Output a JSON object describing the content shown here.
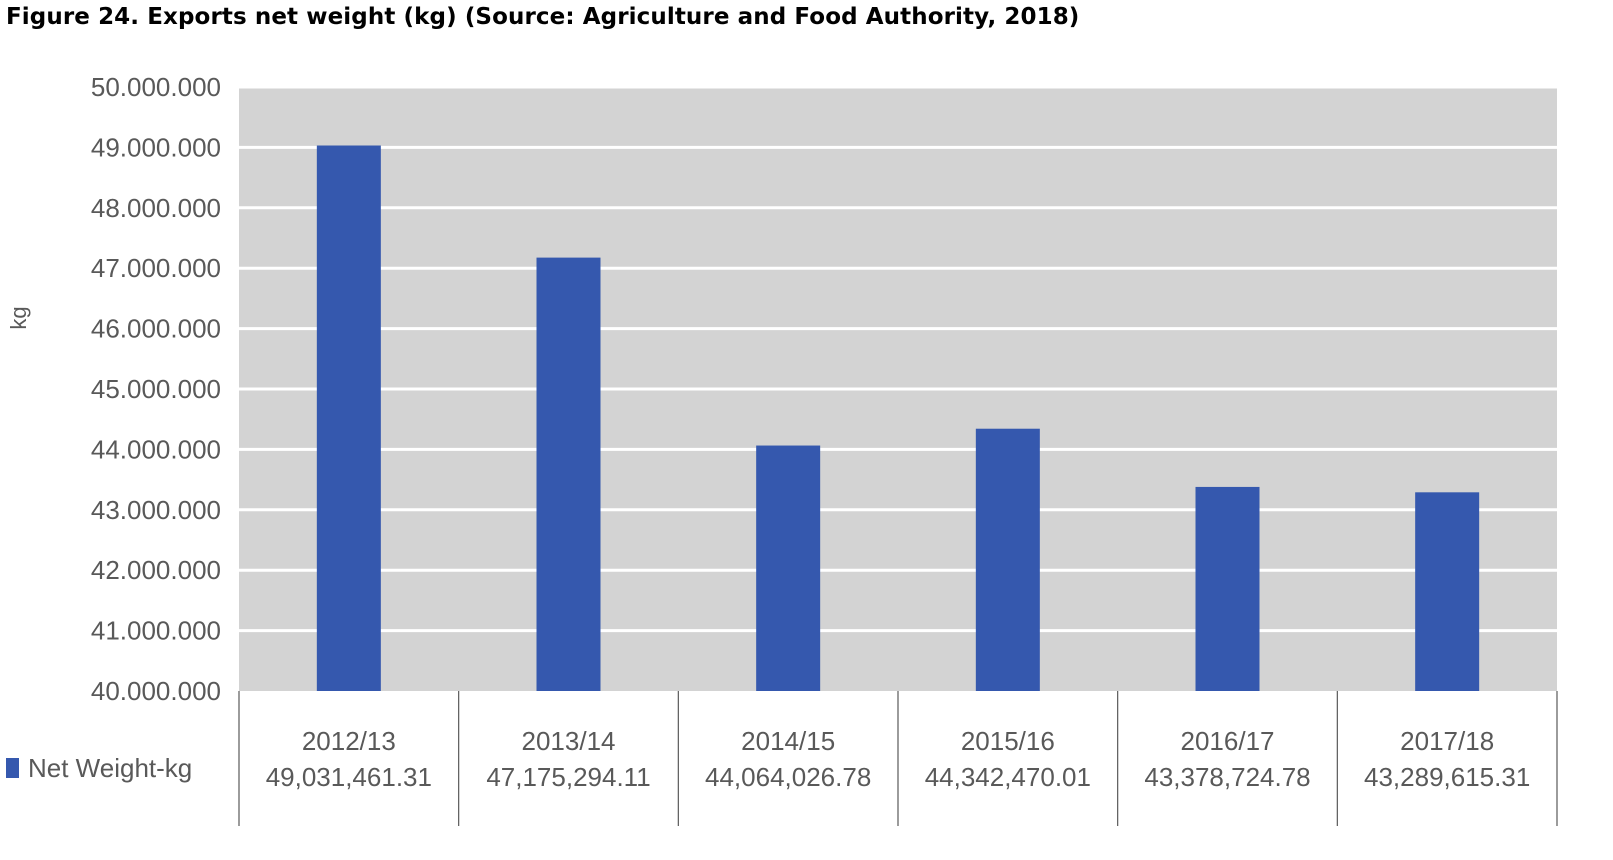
{
  "figure": {
    "title": "Figure 24. Exports net weight (kg) (Source: Agriculture and Food Authority, 2018)"
  },
  "colors": {
    "bar": "#3558ae",
    "plot_background": "#d3d3d3",
    "gridline": "#ffffff",
    "axis_line": "#595959",
    "text": "#595959"
  },
  "chart_data": {
    "type": "bar",
    "title": "",
    "xlabel": "",
    "ylabel": "kg",
    "ylim": [
      40000000,
      50000000
    ],
    "yticks": [
      40000000,
      41000000,
      42000000,
      43000000,
      44000000,
      45000000,
      46000000,
      47000000,
      48000000,
      49000000,
      50000000
    ],
    "ytick_labels": [
      "40.000.000",
      "41.000.000",
      "42.000.000",
      "43.000.000",
      "44.000.000",
      "45.000.000",
      "46.000.000",
      "47.000.000",
      "48.000.000",
      "49.000.000",
      "50.000.000"
    ],
    "grid": true,
    "legend_position": "bottom-left",
    "categories": [
      "2012/13",
      "2013/14",
      "2014/15",
      "2015/16",
      "2016/17",
      "2017/18"
    ],
    "series": [
      {
        "name": "Net Weight-kg",
        "values": [
          49031461.31,
          47175294.11,
          44064026.78,
          44342470.01,
          43378724.78,
          43289615.31
        ],
        "value_labels": [
          "49,031,461.31",
          "47,175,294.11",
          "44,064,026.78",
          "44,342,470.01",
          "43,378,724.78",
          "43,289,615.31"
        ]
      }
    ]
  }
}
